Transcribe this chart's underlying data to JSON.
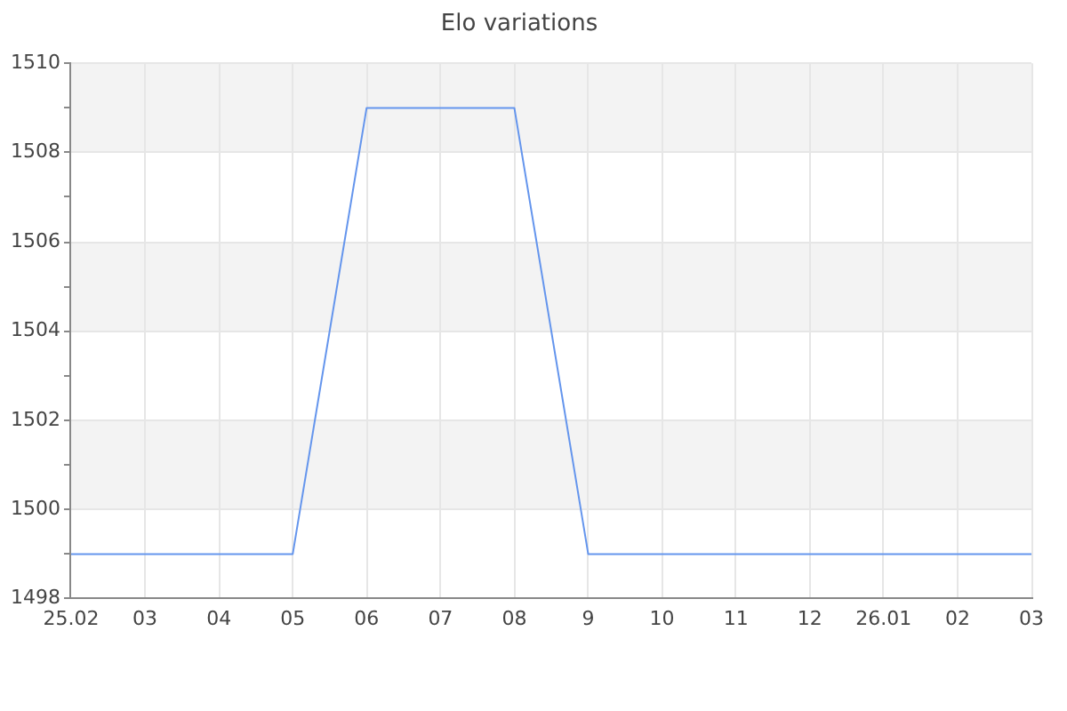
{
  "chart_data": {
    "type": "line",
    "title": "Elo variations",
    "categories": [
      "25.02",
      "03",
      "04",
      "05",
      "06",
      "07",
      "08",
      "9",
      "10",
      "11",
      "12",
      "26.01",
      "02",
      "03"
    ],
    "series": [
      {
        "color": "#6495ed",
        "values": [
          1499,
          1499,
          1499,
          1499,
          1509,
          1509,
          1509,
          1499,
          1499,
          1499,
          1499,
          1499,
          1499,
          1499
        ]
      }
    ],
    "ylim": [
      1498,
      1510
    ],
    "yticks": [
      1498,
      {
        "value": 1499,
        "label": null
      },
      1500,
      {
        "value": 1501,
        "label": null
      },
      1502,
      {
        "value": 1503,
        "label": null
      },
      1504,
      {
        "value": 1505,
        "label": null
      },
      1506,
      {
        "value": 1507,
        "label": null
      },
      1508,
      {
        "value": 1509,
        "label": null
      },
      1510
    ],
    "bands": [
      {
        "axis": "y",
        "from": 1500,
        "to": 1502,
        "color": "#f3f3f3"
      },
      {
        "axis": "y",
        "from": 1504,
        "to": 1506,
        "color": "#f3f3f3"
      },
      {
        "axis": "y",
        "from": 1508,
        "to": 1510,
        "color": "#f3f3f3"
      }
    ],
    "grid": true,
    "legend": false,
    "marker": "none",
    "line_style": "solid"
  }
}
